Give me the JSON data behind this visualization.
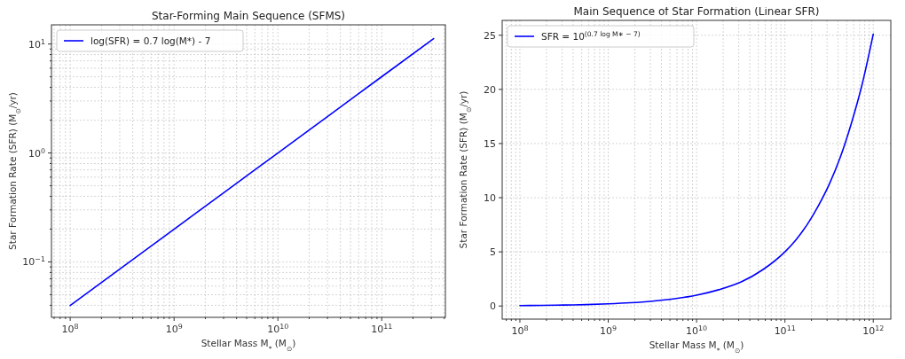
{
  "chart_data": [
    {
      "type": "line",
      "title": "Star-Forming Main Sequence (SFMS)",
      "xlabel": "Stellar Mass M$_{*}$ (M$_{⊙}$)",
      "ylabel": "Star Formation Rate (SFR) (M$_{⊙}$/yr)",
      "log": "xy",
      "grid": true,
      "legend": "top left",
      "xlim": [
        66000000,
        410000000000
      ],
      "ylim": [
        0.031,
        15
      ],
      "xticks": [
        {
          "value": 70000000,
          "label": null
        },
        {
          "value": 80000000,
          "label": null
        },
        {
          "value": 90000000,
          "label": null
        },
        {
          "value": 100000000,
          "label": "10$^{8}$"
        },
        {
          "value": 200000000,
          "label": null
        },
        {
          "value": 300000000,
          "label": null
        },
        {
          "value": 400000000,
          "label": null
        },
        {
          "value": 500000000,
          "label": null
        },
        {
          "value": 600000000,
          "label": null
        },
        {
          "value": 700000000,
          "label": null
        },
        {
          "value": 800000000,
          "label": null
        },
        {
          "value": 900000000,
          "label": null
        },
        {
          "value": 1000000000,
          "label": "10$^{9}$"
        },
        {
          "value": 2000000000,
          "label": null
        },
        {
          "value": 3000000000,
          "label": null
        },
        {
          "value": 4000000000,
          "label": null
        },
        {
          "value": 5000000000,
          "label": null
        },
        {
          "value": 6000000000,
          "label": null
        },
        {
          "value": 7000000000,
          "label": null
        },
        {
          "value": 8000000000,
          "label": null
        },
        {
          "value": 9000000000,
          "label": null
        },
        {
          "value": 10000000000,
          "label": "10$^{10}$"
        },
        {
          "value": 20000000000,
          "label": null
        },
        {
          "value": 30000000000,
          "label": null
        },
        {
          "value": 40000000000,
          "label": null
        },
        {
          "value": 50000000000,
          "label": null
        },
        {
          "value": 60000000000,
          "label": null
        },
        {
          "value": 70000000000,
          "label": null
        },
        {
          "value": 80000000000,
          "label": null
        },
        {
          "value": 90000000000,
          "label": null
        },
        {
          "value": 100000000000,
          "label": "10$^{11}$"
        },
        {
          "value": 200000000000,
          "label": null
        },
        {
          "value": 300000000000,
          "label": null
        },
        {
          "value": 400000000000,
          "label": null
        }
      ],
      "yticks": [
        {
          "value": 0.04,
          "label": null
        },
        {
          "value": 0.05,
          "label": null
        },
        {
          "value": 0.06,
          "label": null
        },
        {
          "value": 0.07,
          "label": null
        },
        {
          "value": 0.08,
          "label": null
        },
        {
          "value": 0.09,
          "label": null
        },
        {
          "value": 0.1,
          "label": "10$^{−1}$"
        },
        {
          "value": 0.2,
          "label": null
        },
        {
          "value": 0.3,
          "label": null
        },
        {
          "value": 0.4,
          "label": null
        },
        {
          "value": 0.5,
          "label": null
        },
        {
          "value": 0.6,
          "label": null
        },
        {
          "value": 0.7,
          "label": null
        },
        {
          "value": 0.8,
          "label": null
        },
        {
          "value": 0.9,
          "label": null
        },
        {
          "value": 1,
          "label": "10$^{0}$"
        },
        {
          "value": 2,
          "label": null
        },
        {
          "value": 3,
          "label": null
        },
        {
          "value": 4,
          "label": null
        },
        {
          "value": 5,
          "label": null
        },
        {
          "value": 6,
          "label": null
        },
        {
          "value": 7,
          "label": null
        },
        {
          "value": 8,
          "label": null
        },
        {
          "value": 9,
          "label": null
        },
        {
          "value": 10,
          "label": "10$^{1}$"
        }
      ],
      "x": [
        100000000,
        316000000,
        1000000000,
        3160000000,
        10000000000,
        31600000000,
        100000000000,
        316000000000
      ],
      "series": [
        {
          "name": "log(SFR) = 0.7 log(M*) - 7",
          "color": "#0000ff",
          "values": [
            0.0398,
            0.0891,
            0.1995,
            0.447,
            1,
            2.239,
            5.012,
            11.22
          ]
        }
      ]
    },
    {
      "type": "line",
      "title": "Main Sequence of Star Formation (Linear SFR)",
      "xlabel": "Stellar Mass M$_{*}$ (M$_{⊙}$)",
      "ylabel": "Star Formation Rate (SFR) (M$_{⊙}$/yr)",
      "log": "x",
      "grid": true,
      "legend": "top left",
      "xlim": [
        63000000,
        1580000000000
      ],
      "ylim": [
        -1.21,
        26.37
      ],
      "xticks": [
        {
          "value": 70000000,
          "label": null
        },
        {
          "value": 80000000,
          "label": null
        },
        {
          "value": 90000000,
          "label": null
        },
        {
          "value": 100000000,
          "label": "10$^{8}$"
        },
        {
          "value": 200000000,
          "label": null
        },
        {
          "value": 300000000,
          "label": null
        },
        {
          "value": 400000000,
          "label": null
        },
        {
          "value": 500000000,
          "label": null
        },
        {
          "value": 600000000,
          "label": null
        },
        {
          "value": 700000000,
          "label": null
        },
        {
          "value": 800000000,
          "label": null
        },
        {
          "value": 900000000,
          "label": null
        },
        {
          "value": 1000000000,
          "label": "10$^{9}$"
        },
        {
          "value": 2000000000,
          "label": null
        },
        {
          "value": 3000000000,
          "label": null
        },
        {
          "value": 4000000000,
          "label": null
        },
        {
          "value": 5000000000,
          "label": null
        },
        {
          "value": 6000000000,
          "label": null
        },
        {
          "value": 7000000000,
          "label": null
        },
        {
          "value": 8000000000,
          "label": null
        },
        {
          "value": 9000000000,
          "label": null
        },
        {
          "value": 10000000000,
          "label": "10$^{10}$"
        },
        {
          "value": 20000000000,
          "label": null
        },
        {
          "value": 30000000000,
          "label": null
        },
        {
          "value": 40000000000,
          "label": null
        },
        {
          "value": 50000000000,
          "label": null
        },
        {
          "value": 60000000000,
          "label": null
        },
        {
          "value": 70000000000,
          "label": null
        },
        {
          "value": 80000000000,
          "label": null
        },
        {
          "value": 90000000000,
          "label": null
        },
        {
          "value": 100000000000,
          "label": "10$^{11}$"
        },
        {
          "value": 200000000000,
          "label": null
        },
        {
          "value": 300000000000,
          "label": null
        },
        {
          "value": 400000000000,
          "label": null
        },
        {
          "value": 500000000000,
          "label": null
        },
        {
          "value": 600000000000,
          "label": null
        },
        {
          "value": 700000000000,
          "label": null
        },
        {
          "value": 800000000000,
          "label": null
        },
        {
          "value": 900000000000,
          "label": null
        },
        {
          "value": 1000000000000,
          "label": "10$^{12}$"
        }
      ],
      "yticks": [
        0,
        5,
        10,
        15,
        20,
        25
      ],
      "x": [
        100000000,
        178000000,
        316000000,
        562000000,
        1000000000,
        1780000000,
        3160000000,
        5620000000,
        10000000000,
        17800000000,
        31600000000,
        56200000000,
        100000000000,
        133000000000,
        178000000000,
        237000000000,
        316000000000,
        422000000000,
        562000000000,
        750000000000,
        1000000000000
      ],
      "series": [
        {
          "name": "SFR = 10$^{(0.7 log M∗ − 7)}$",
          "color": "#0000ff",
          "values": [
            0.04,
            0.06,
            0.09,
            0.13,
            0.2,
            0.3,
            0.45,
            0.67,
            1,
            1.5,
            2.2,
            3.35,
            5,
            6.1,
            7.5,
            9.2,
            11.2,
            13.7,
            16.8,
            20.5,
            25.1
          ]
        }
      ]
    }
  ]
}
